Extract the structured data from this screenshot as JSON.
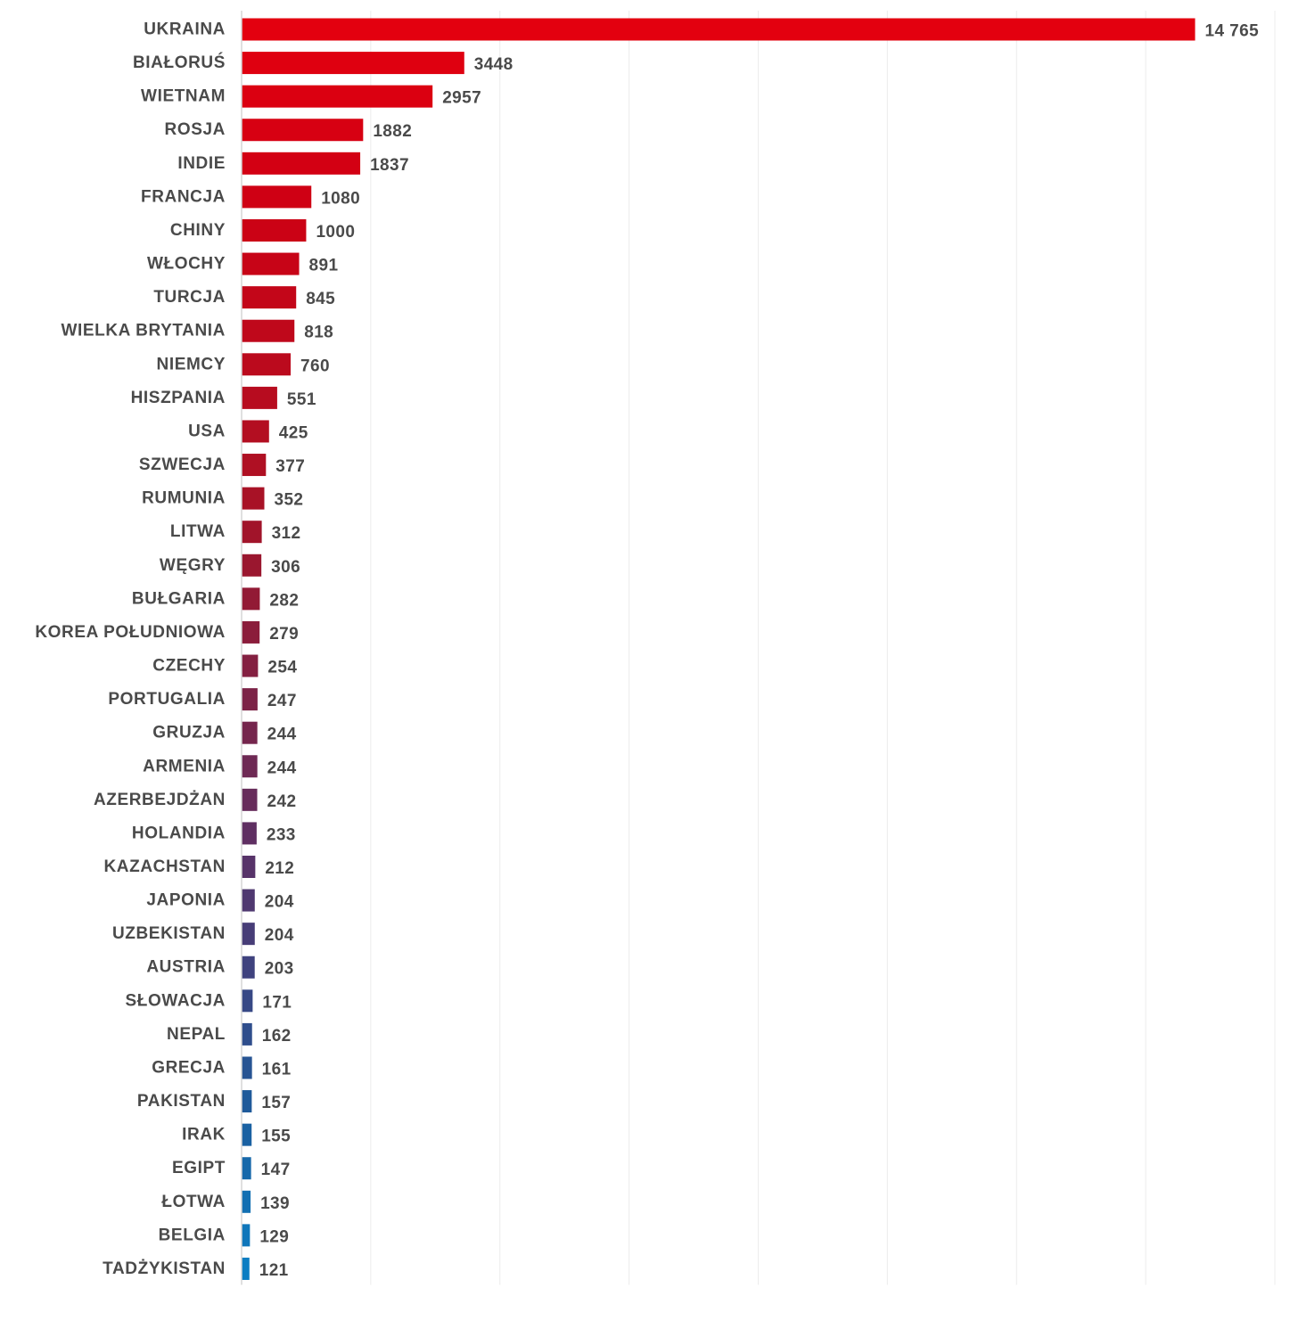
{
  "chart_data": {
    "type": "bar",
    "orientation": "horizontal",
    "categories": [
      "UKRAINA",
      "BIAŁORUŚ",
      "WIETNAM",
      "ROSJA",
      "INDIE",
      "FRANCJA",
      "CHINY",
      "WŁOCHY",
      "TURCJA",
      "WIELKA BRYTANIA",
      "NIEMCY",
      "HISZPANIA",
      "USA",
      "SZWECJA",
      "RUMUNIA",
      "LITWA",
      "WĘGRY",
      "BUŁGARIA",
      "KOREA POŁUDNIOWA",
      "CZECHY",
      "PORTUGALIA",
      "GRUZJA",
      "ARMENIA",
      "AZERBEJDŻAN",
      "HOLANDIA",
      "KAZACHSTAN",
      "JAPONIA",
      "UZBEKISTAN",
      "AUSTRIA",
      "SŁOWACJA",
      "NEPAL",
      "GRECJA",
      "PAKISTAN",
      "IRAK",
      "EGIPT",
      "ŁOTWA",
      "BELGIA",
      "TADŻYKISTAN"
    ],
    "values": [
      14765,
      3448,
      2957,
      1882,
      1837,
      1080,
      1000,
      891,
      845,
      818,
      760,
      551,
      425,
      377,
      352,
      312,
      306,
      282,
      279,
      254,
      247,
      244,
      244,
      242,
      233,
      212,
      204,
      204,
      203,
      171,
      162,
      161,
      157,
      155,
      147,
      139,
      129,
      121
    ],
    "value_labels": [
      "14 765",
      "3448",
      "2957",
      "1882",
      "1837",
      "1080",
      "1000",
      "891",
      "845",
      "818",
      "760",
      "551",
      "425",
      "377",
      "352",
      "312",
      "306",
      "282",
      "279",
      "254",
      "247",
      "244",
      "244",
      "242",
      "233",
      "212",
      "204",
      "204",
      "203",
      "171",
      "162",
      "161",
      "157",
      "155",
      "147",
      "139",
      "129",
      "121"
    ],
    "xlim": [
      0,
      16000
    ],
    "grid": true,
    "legend": "none",
    "title": "",
    "xlabel": "",
    "ylabel": "",
    "colors": [
      "#e3000f",
      "#df0010",
      "#db0011",
      "#d70012",
      "#d30013",
      "#cf0014",
      "#cb0215",
      "#c70417",
      "#c30619",
      "#bf081b",
      "#bb0a1d",
      "#b70c1f",
      "#b30e21",
      "#af1023",
      "#a81226",
      "#a1142a",
      "#9a172f",
      "#921a35",
      "#8b1d3b",
      "#842041",
      "#7c2347",
      "#75264d",
      "#6e2954",
      "#672c5b",
      "#5f2f62",
      "#573369",
      "#4f3870",
      "#473d77",
      "#3f427e",
      "#374885",
      "#2f4e8c",
      "#275493",
      "#1f5a9a",
      "#1a61a2",
      "#1668aa",
      "#126fb2",
      "#0f76ba",
      "#0c7dc2"
    ]
  }
}
